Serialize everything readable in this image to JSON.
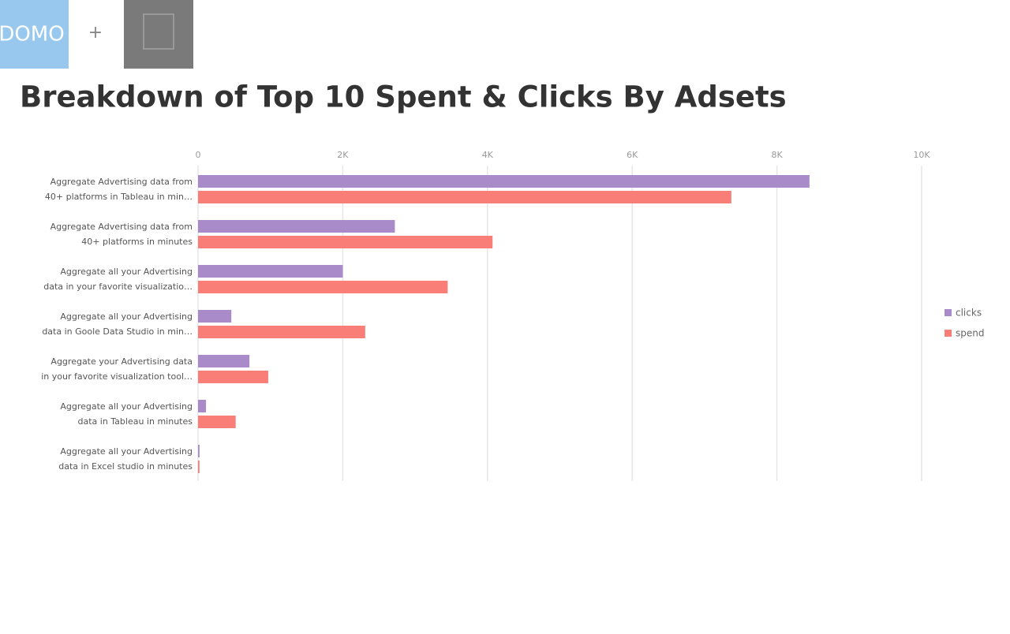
{
  "header": {
    "logo": "DOMO",
    "plus": "+"
  },
  "chart_data": {
    "type": "hbar",
    "title": "Breakdown of Top 10 Spent & Clicks By Adsets",
    "categories": [
      [
        "Aggregate Advertising data from",
        "40+ platforms in Tableau in min…"
      ],
      [
        "Aggregate Advertising data from",
        "40+ platforms in minutes"
      ],
      [
        "Aggregate all your Advertising",
        "data in your favorite visualizatio…"
      ],
      [
        "Aggregate all your Advertising",
        "data in Goole Data Studio in min…"
      ],
      [
        "Aggregate your Advertising data",
        "in your favorite visualization tool…"
      ],
      [
        "Aggregate all your Advertising",
        "data in Tableau in minutes"
      ],
      [
        "Aggregate all your Advertising",
        "data in Excel studio in minutes"
      ]
    ],
    "series": [
      {
        "name": "clicks",
        "color": "#a98bc9",
        "values": [
          8450,
          2720,
          2000,
          460,
          710,
          110,
          20
        ]
      },
      {
        "name": "spend",
        "color": "#f97e78",
        "values": [
          7370,
          4070,
          3450,
          2310,
          970,
          520,
          20
        ]
      }
    ],
    "xlim": [
      0,
      10000
    ],
    "xticks": [
      0,
      {
        "value": 2000,
        "label": "2K"
      },
      {
        "value": 4000,
        "label": "4K"
      },
      {
        "value": 6000,
        "label": "6K"
      },
      {
        "value": 8000,
        "label": "8K"
      },
      {
        "value": 10000,
        "label": "10K"
      }
    ],
    "grid": true,
    "legend": "right"
  }
}
